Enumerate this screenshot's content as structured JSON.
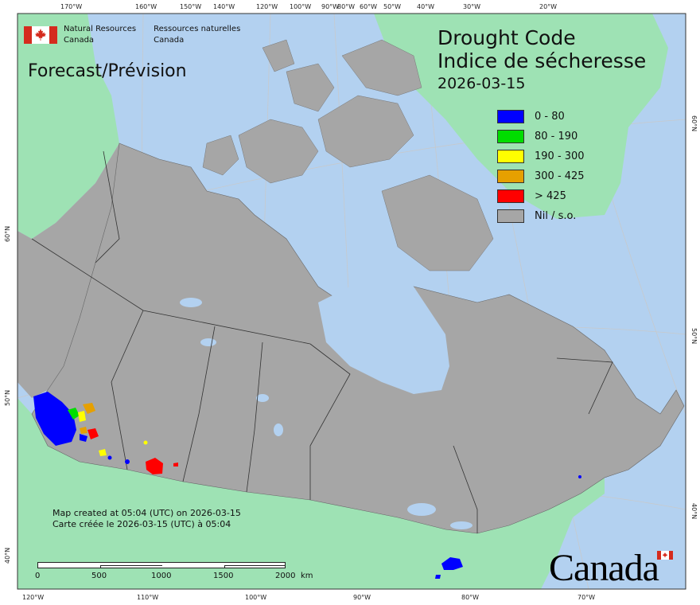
{
  "agency": {
    "name_en_1": "Natural Resources",
    "name_en_2": "Canada",
    "name_fr_1": "Ressources naturelles",
    "name_fr_2": "Canada"
  },
  "map": {
    "product": "Forecast/Prévision",
    "title_en": "Drought Code",
    "title_fr": "Indice de sécheresse",
    "date": "2026-03-15",
    "colors": {
      "ocean": "#b3d1f0",
      "foreign_land": "#9ee2b4",
      "canada_land": "#a6a6a6",
      "border": "#333333",
      "grid": "#c9c9c9"
    },
    "legend": [
      {
        "label": "0 - 80",
        "color": "#0000ff"
      },
      {
        "label": "80 - 190",
        "color": "#00dd00"
      },
      {
        "label": "190 - 300",
        "color": "#ffff00"
      },
      {
        "label": "300 - 425",
        "color": "#e6a000"
      },
      {
        "label": "> 425",
        "color": "#ff0000"
      },
      {
        "label": "Nil / s.o.",
        "color": "#a6a6a6"
      }
    ],
    "top_ticks": [
      "170°W",
      "160°W",
      "150°W",
      "140°W",
      "120°W",
      "100°W",
      "90°W",
      "80°W",
      "60°W",
      "50°W",
      "40°W",
      "30°W",
      "20°W"
    ],
    "bottom_ticks": [
      "120°W",
      "110°W",
      "100°W",
      "90°W",
      "80°W",
      "70°W"
    ],
    "left_ticks": [
      "60°N",
      "50°N",
      "40°N"
    ],
    "right_ticks": [
      "60°N",
      "50°N",
      "40°N"
    ],
    "footer_en": "Map created at 05:04 (UTC) on 2026-03-15",
    "footer_fr": "Carte créée le 2026-03-15 (UTC) à 05:04",
    "scale_labels": [
      "0",
      "500",
      "1000",
      "1500",
      "2000"
    ],
    "scale_unit": "km",
    "wordmark": "Canada"
  }
}
